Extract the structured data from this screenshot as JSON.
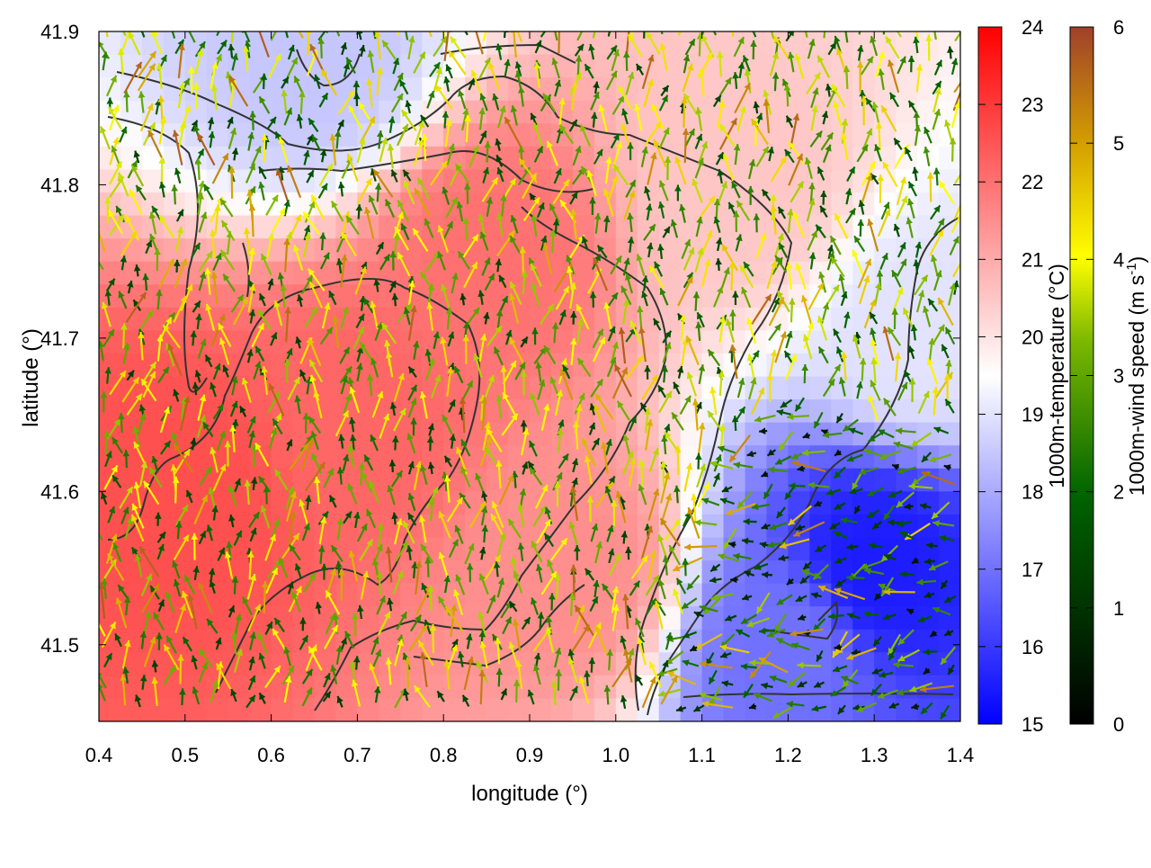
{
  "chart_data": {
    "type": "heatmap",
    "xlabel": "longitude (°)",
    "ylabel": "latitude (°)",
    "xlim": [
      0.4,
      1.4
    ],
    "ylim": [
      41.45,
      41.9
    ],
    "x_ticks": [
      "0.4",
      "0.5",
      "0.6",
      "0.7",
      "0.8",
      "0.9",
      "1.0",
      "1.1",
      "1.2",
      "1.3",
      "1.4"
    ],
    "y_ticks": [
      "41.5",
      "41.6",
      "41.7",
      "41.8",
      "41.9"
    ],
    "temperature_colorbar": {
      "label": "1000m-temperature (°C)",
      "range": [
        15,
        24
      ],
      "ticks": [
        "15",
        "16",
        "17",
        "18",
        "19",
        "20",
        "21",
        "22",
        "23",
        "24"
      ],
      "colors": [
        "#0000ff",
        "#ffffff",
        "#ff0000"
      ]
    },
    "wind_colorbar": {
      "label_main": "1000m-wind speed (m s",
      "label_sup": "-1",
      "label_end": ")",
      "range": [
        0,
        6
      ],
      "ticks": [
        "0",
        "1",
        "2",
        "3",
        "4",
        "5",
        "6"
      ],
      "colors": [
        "#000000",
        "#006400",
        "#7cb800",
        "#ffff00",
        "#d4a000",
        "#a0402a"
      ]
    },
    "temperature_field": {
      "description_points": [
        {
          "x": 0.5,
          "y": 41.6,
          "t": 22.6
        },
        {
          "x": 0.7,
          "y": 41.65,
          "t": 22.2
        },
        {
          "x": 0.85,
          "y": 41.75,
          "t": 22.0
        },
        {
          "x": 0.95,
          "y": 41.55,
          "t": 21.5
        },
        {
          "x": 1.3,
          "y": 41.55,
          "t": 15.5
        },
        {
          "x": 1.2,
          "y": 41.5,
          "t": 17.0
        },
        {
          "x": 1.35,
          "y": 41.7,
          "t": 19.0
        },
        {
          "x": 0.65,
          "y": 41.88,
          "t": 18.5
        },
        {
          "x": 1.15,
          "y": 41.8,
          "t": 20.5
        }
      ]
    },
    "wind_vectors_note": "dense field of arrows colored by wind speed; generally southwesterly flow over land, convergent near the blue cold pool"
  }
}
